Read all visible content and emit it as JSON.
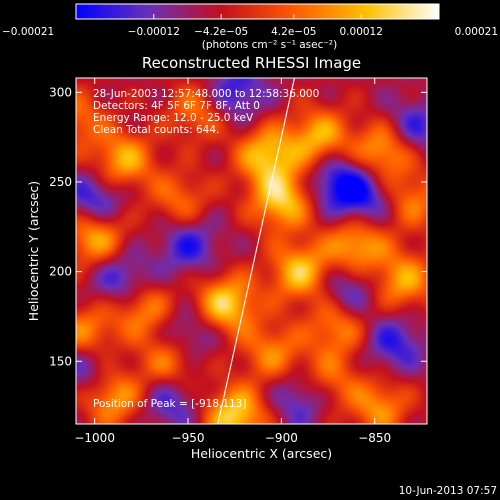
{
  "chart_data": {
    "type": "heatmap",
    "title": "Reconstructed RHESSI Image",
    "xlabel": "Heliocentric X (arcsec)",
    "ylabel": "Heliocentric Y (arcsec)",
    "xlim": [
      -1010,
      -822
    ],
    "ylim": [
      115,
      308
    ],
    "x_ticks": [
      {
        "value": -1000,
        "label": "−1000"
      },
      {
        "value": -950,
        "label": "−950"
      },
      {
        "value": -900,
        "label": "−900"
      },
      {
        "value": -850,
        "label": "−850"
      }
    ],
    "y_ticks": [
      {
        "value": 150,
        "label": "150"
      },
      {
        "value": 200,
        "label": "200"
      },
      {
        "value": 250,
        "label": "250"
      },
      {
        "value": 300,
        "label": "300"
      }
    ],
    "colorbar": {
      "range": [
        -0.00021,
        0.00021
      ],
      "ticks": [
        {
          "value": -0.00021,
          "label": "−0.00021"
        },
        {
          "value": -0.00012,
          "label": "−0.00012"
        },
        {
          "value": -4.2e-05,
          "label": "−4.2e−05"
        },
        {
          "value": 4.2e-05,
          "label": "4.2e−05"
        },
        {
          "value": 0.00012,
          "label": "0.00012"
        },
        {
          "value": 0.00021,
          "label": "0.00021"
        }
      ],
      "unit_label": "(photons cm⁻² s⁻¹ asec⁻²)",
      "stops": [
        "#0000ff",
        "#6a2fb8",
        "#c21020",
        "#ff5a00",
        "#ffc000",
        "#ffffff"
      ]
    },
    "info_lines": [
      "28-Jun-2003 12:57:48.000 to 12:58:36.000",
      "Detectors: 4F 5F 6F 7F 8F, Att 0",
      "Energy Range: 12.0 - 25.0 keV",
      "Clean    Total counts: 644."
    ],
    "peak_label": "Position of Peak = [-918,113]",
    "limb_line": {
      "x": [
        -934,
        -893
      ],
      "y": [
        115,
        308
      ]
    },
    "peak": {
      "x": -918,
      "y": 113
    },
    "blobs": [
      {
        "x": -900,
        "y": 240,
        "v": 0.0002
      },
      {
        "x": -930,
        "y": 182,
        "v": 0.00021
      },
      {
        "x": -925,
        "y": 120,
        "v": 0.00021
      },
      {
        "x": -908,
        "y": 265,
        "v": 0.00019
      },
      {
        "x": -880,
        "y": 275,
        "v": 0.00017
      },
      {
        "x": -845,
        "y": 268,
        "v": 0.00018
      },
      {
        "x": -890,
        "y": 200,
        "v": 0.00019
      },
      {
        "x": -860,
        "y": 215,
        "v": 0.00018
      },
      {
        "x": -835,
        "y": 195,
        "v": 0.00016
      },
      {
        "x": -1000,
        "y": 220,
        "v": 0.00018
      },
      {
        "x": -985,
        "y": 262,
        "v": 0.00017
      },
      {
        "x": -975,
        "y": 180,
        "v": 0.00015
      },
      {
        "x": -1005,
        "y": 165,
        "v": 0.00015
      },
      {
        "x": -990,
        "y": 130,
        "v": 0.00016
      },
      {
        "x": -960,
        "y": 150,
        "v": 0.00014
      },
      {
        "x": -905,
        "y": 155,
        "v": 0.00013
      },
      {
        "x": -870,
        "y": 170,
        "v": 0.00014
      },
      {
        "x": -848,
        "y": 125,
        "v": 0.00014
      },
      {
        "x": -830,
        "y": 240,
        "v": 0.00012
      },
      {
        "x": -955,
        "y": 240,
        "v": 0.00011
      },
      {
        "x": -945,
        "y": 290,
        "v": 0.00012
      },
      {
        "x": -1010,
        "y": 285,
        "v": 0.00011
      },
      {
        "x": -875,
        "y": 140,
        "v": 0.00011
      },
      {
        "x": -950,
        "y": 215,
        "v": -0.00012
      },
      {
        "x": -925,
        "y": 300,
        "v": -0.00013
      },
      {
        "x": -985,
        "y": 195,
        "v": -0.00013
      },
      {
        "x": -1000,
        "y": 240,
        "v": -0.00014
      },
      {
        "x": -870,
        "y": 250,
        "v": -0.00015
      },
      {
        "x": -855,
        "y": 240,
        "v": -0.00012
      },
      {
        "x": -830,
        "y": 280,
        "v": -0.00012
      },
      {
        "x": -865,
        "y": 190,
        "v": -0.00012
      },
      {
        "x": -840,
        "y": 160,
        "v": -0.00012
      },
      {
        "x": -950,
        "y": 165,
        "v": -0.00011
      },
      {
        "x": -890,
        "y": 130,
        "v": -0.00011
      },
      {
        "x": -960,
        "y": 128,
        "v": -0.00011
      },
      {
        "x": -1005,
        "y": 148,
        "v": -0.00011
      }
    ]
  },
  "footer": {
    "date_stamp": "10-Jun-2013 07:57"
  }
}
